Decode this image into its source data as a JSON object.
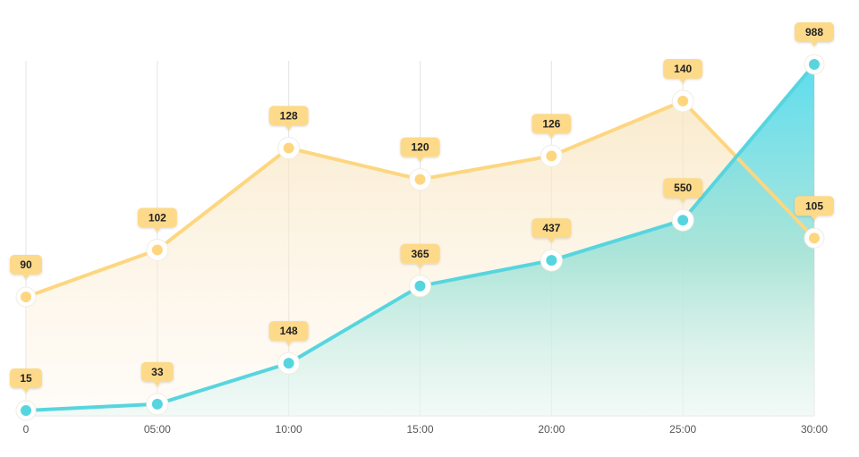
{
  "chart_data": {
    "type": "area",
    "categories": [
      "0",
      "05:00",
      "10:00",
      "15:00",
      "20:00",
      "25:00",
      "30:00"
    ],
    "series": [
      {
        "key": "yellow",
        "values": [
          90,
          102,
          128,
          120,
          126,
          140,
          105
        ],
        "color": "#fdd67f",
        "label_bg": "#fdd98a"
      },
      {
        "key": "teal",
        "values": [
          15,
          33,
          148,
          365,
          437,
          550,
          988
        ],
        "color": "#57d5df",
        "label_bg": "#fdd98a"
      }
    ],
    "grid": true,
    "legend": "none"
  }
}
